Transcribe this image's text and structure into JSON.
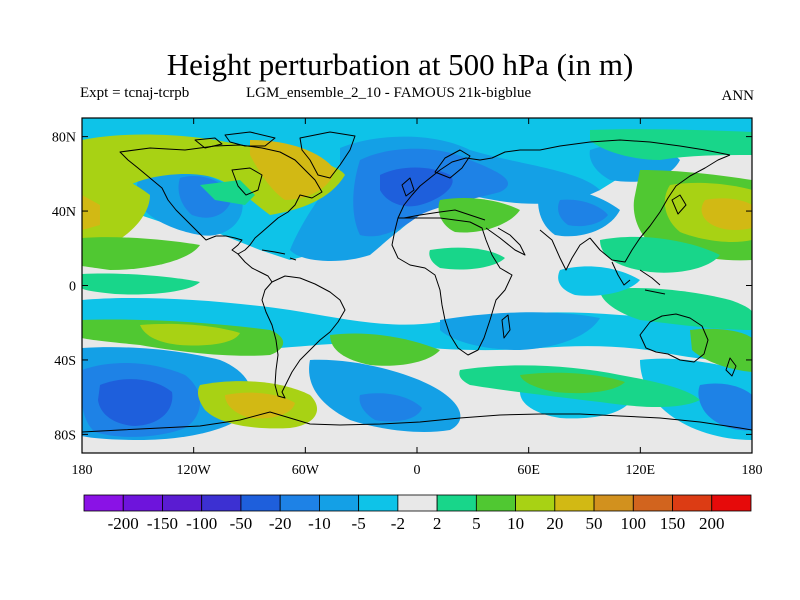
{
  "header": {
    "title": "Height perturbation at 500 hPa (in m)",
    "expt": "Expt = tcnaj-tcrpb",
    "run": "LGM_ensemble_2_10 - FAMOUS 21k-bigblue",
    "season": "ANN"
  },
  "axes": {
    "lat_ticks": [
      "80N",
      "40N",
      "0",
      "40S",
      "80S"
    ],
    "lat_values": [
      80,
      40,
      0,
      -40,
      -80
    ],
    "lon_ticks": [
      "180",
      "120W",
      "60W",
      "0",
      "60E",
      "120E",
      "180"
    ],
    "lon_values": [
      -180,
      -120,
      -60,
      0,
      60,
      120,
      180
    ],
    "lon_range": [
      -180,
      180
    ],
    "lat_range": [
      -90,
      90
    ]
  },
  "colorbar": {
    "labels": [
      "-200",
      "-150",
      "-100",
      "-50",
      "-20",
      "-10",
      "-5",
      "-2",
      "2",
      "5",
      "10",
      "20",
      "50",
      "100",
      "150",
      "200"
    ],
    "colors": [
      "#8a12e6",
      "#6e14dc",
      "#5a1cd2",
      "#3c30d2",
      "#1e5fdc",
      "#1e82e6",
      "#14a0e6",
      "#0ec3e8",
      "#e8e8e8",
      "#18d68a",
      "#50c832",
      "#a8d214",
      "#d2b914",
      "#d2911e",
      "#d2641e",
      "#dc3c14",
      "#e60a0a"
    ]
  },
  "legend_colors": {
    "background": "#e8e8e8",
    "coast": "#000000"
  }
}
